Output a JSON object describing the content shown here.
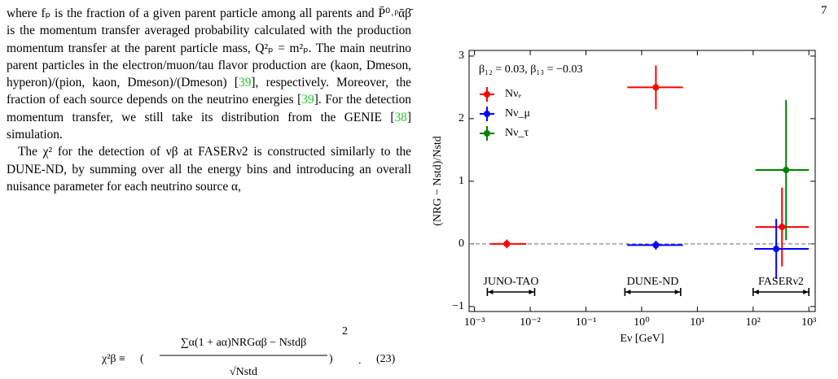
{
  "page_number": "7",
  "paragraphs": [
    [
      {
        "t": "where fₚ is the fraction of a given parent particle among all parents and P̄⁰˒ᵖᾱβ̄ is the momentum transfer averaged probability calculated with the production momentum transfer at the parent particle mass, Q²ₚ = m²ₚ. The main neutrino parent particles in the electron/muon/tau flavor production are (kaon, Dmeson, hyperon)/(pion, kaon, Dmeson)/(Dmeson) ["
      },
      {
        "cite": "39"
      },
      {
        "t": "], respectively. Moreover, the fraction of each source depends on the neutrino energies ["
      },
      {
        "cite": "39"
      },
      {
        "t": "]. For the detection momentum transfer, we still take its distribution from the GENIE ["
      },
      {
        "cite": "38"
      },
      {
        "t": "] simulation."
      }
    ],
    [
      {
        "t": "The χ² for the detection of νβ at FASERν2 is constructed similarly to the DUNE-ND, by summing over all the energy bins and introducing an overall nuisance parameter for each neutrino source α,"
      }
    ]
  ],
  "equation": {
    "lhs": "χ²β ≡",
    "numerator": "∑α(1 + aα)NRGαβ − Nstdβ",
    "denominator": "√Nstd",
    "power": "2",
    "end": ".",
    "number": "(23)"
  },
  "chart_data": {
    "type": "errorbar",
    "annotation": "β₁₂ = 0.03, β₁₃ = −0.03",
    "x_label": "Eν [GeV]",
    "y_label": "(NRG − Nstd)/Nstd",
    "x_scale": "log",
    "xlim": [
      0.0008,
      1300
    ],
    "ylim": [
      -1.08,
      3.09
    ],
    "xticks": [
      {
        "value": 0.001,
        "label": "10⁻³"
      },
      {
        "value": 0.01,
        "label": "10⁻²"
      },
      {
        "value": 0.1,
        "label": "10⁻¹"
      },
      {
        "value": 1,
        "label": "10⁰"
      },
      {
        "value": 10,
        "label": "10¹"
      },
      {
        "value": 100,
        "label": "10²"
      },
      {
        "value": 1000,
        "label": "10³"
      }
    ],
    "yticks": [
      {
        "value": -1,
        "label": "−1"
      },
      0,
      1,
      2,
      3
    ],
    "reference_line": 0,
    "legend": "upper left",
    "regions": [
      {
        "label": "JUNO-TAO",
        "range": [
          0.0017,
          0.012
        ]
      },
      {
        "label": "DUNE-ND",
        "range": [
          0.5,
          5
        ]
      },
      {
        "label": "FASERν2",
        "range": [
          100,
          1000
        ]
      }
    ],
    "series": [
      {
        "name": "Nνₑ",
        "color": "#ff0000",
        "x": [
          0.0038,
          1.8,
          330
        ],
        "values": [
          0,
          2.5,
          0.27
        ],
        "xlow": [
          0.0019,
          0.55,
          110
        ],
        "xhigh": [
          0.0085,
          5.5,
          1000
        ],
        "yerr": [
          0.07,
          0.35,
          0.63
        ]
      },
      {
        "name": "Nν_μ",
        "color": "#0000ff",
        "x": [
          1.8,
          260
        ],
        "values": [
          -0.02,
          -0.08
        ],
        "xlow": [
          0.55,
          105
        ],
        "xhigh": [
          5.5,
          1000
        ],
        "yerr": [
          0.07,
          0.48
        ]
      },
      {
        "name": "Nν_τ",
        "color": "#008000",
        "x": [
          390
        ],
        "values": [
          1.18
        ],
        "xlow": [
          110
        ],
        "xhigh": [
          1000
        ],
        "yerr": [
          1.12
        ]
      }
    ]
  }
}
